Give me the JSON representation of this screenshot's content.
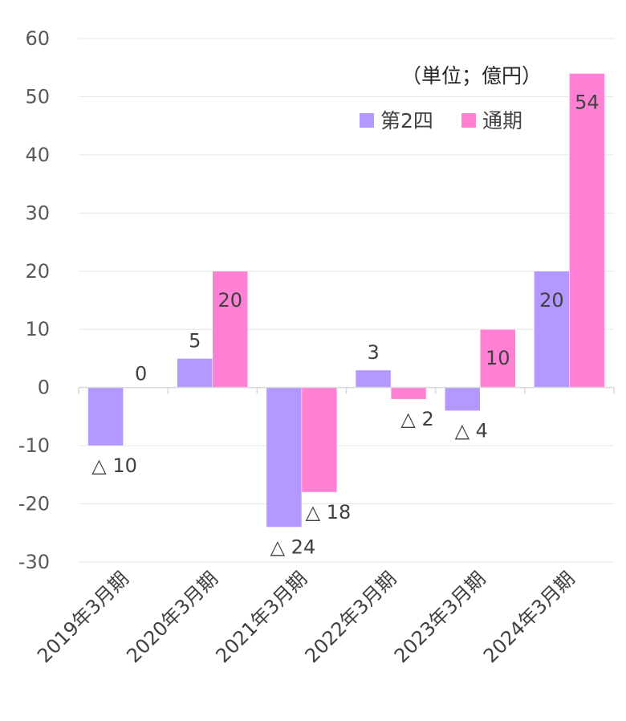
{
  "chart_data": {
    "type": "bar",
    "unit_label": "（単位；億円）",
    "categories": [
      "2019年3月期",
      "2020年3月期",
      "2021年3月期",
      "2022年3月期",
      "2023年3月期",
      "2024年3月期"
    ],
    "series": [
      {
        "name": "第2四",
        "color": "#b399ff",
        "values": [
          -10,
          5,
          -24,
          3,
          -4,
          20
        ],
        "labels": [
          "△ 10",
          "5",
          "△ 24",
          "3",
          "△ 4",
          "20"
        ]
      },
      {
        "name": "通期",
        "color": "#ff80d4",
        "values": [
          0,
          20,
          -18,
          -2,
          10,
          54
        ],
        "labels": [
          "0",
          "20",
          "△ 18",
          "△ 2",
          "10",
          "54"
        ]
      }
    ],
    "y_ticks": [
      "60",
      "50",
      "40",
      "30",
      "20",
      "10",
      "0",
      "-10",
      "-20",
      "-30"
    ],
    "ylim": [
      -30,
      60
    ],
    "grid": true,
    "legend_position": "top-right"
  }
}
